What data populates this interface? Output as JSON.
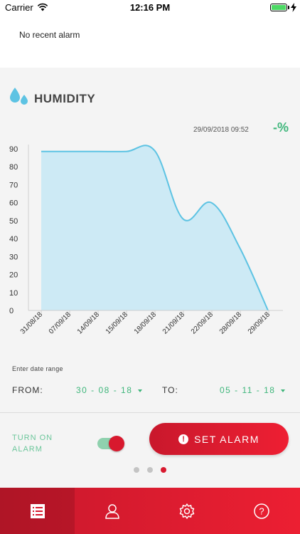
{
  "status_bar": {
    "carrier": "Carrier",
    "time": "12:16 PM"
  },
  "recent_alarm": "No recent alarm",
  "section": {
    "title": "HUMIDITY",
    "icon": "water-drops-icon",
    "timestamp": "29/09/2018 09:52",
    "current_value": "-%"
  },
  "chart_data": {
    "type": "area",
    "x": [
      "31/08/18",
      "07/09/18",
      "14/09/18",
      "15/09/18",
      "18/09/18",
      "21/09/18",
      "22/09/18",
      "28/09/18",
      "29/09/18"
    ],
    "values": [
      88.5,
      88.5,
      88.5,
      88.5,
      89,
      51,
      60,
      35,
      0
    ],
    "ylim": [
      0,
      90
    ],
    "yticks": [
      0,
      10,
      20,
      30,
      40,
      50,
      60,
      70,
      80,
      90
    ],
    "xlabel": "",
    "ylabel": "",
    "grid": false,
    "fill_color": "#cdeaf5",
    "line_color": "#5dc3e3"
  },
  "date_range": {
    "prompt": "Enter date range",
    "from_label": "FROM:",
    "from_value": "30 - 08 - 18",
    "to_label": "TO:",
    "to_value": "05 - 11 - 18"
  },
  "alarm": {
    "toggle_label": "TURN ON ALARM",
    "toggle_on": true,
    "button_label": "SET ALARM"
  },
  "pager": {
    "count": 3,
    "active_index": 2
  },
  "tabs": [
    {
      "icon": "list-icon",
      "active": true
    },
    {
      "icon": "user-icon",
      "active": false
    },
    {
      "icon": "gear-icon",
      "active": false
    },
    {
      "icon": "help-icon",
      "active": false
    }
  ],
  "colors": {
    "accent_red": "#d8192e",
    "accent_green": "#3fb67b"
  }
}
